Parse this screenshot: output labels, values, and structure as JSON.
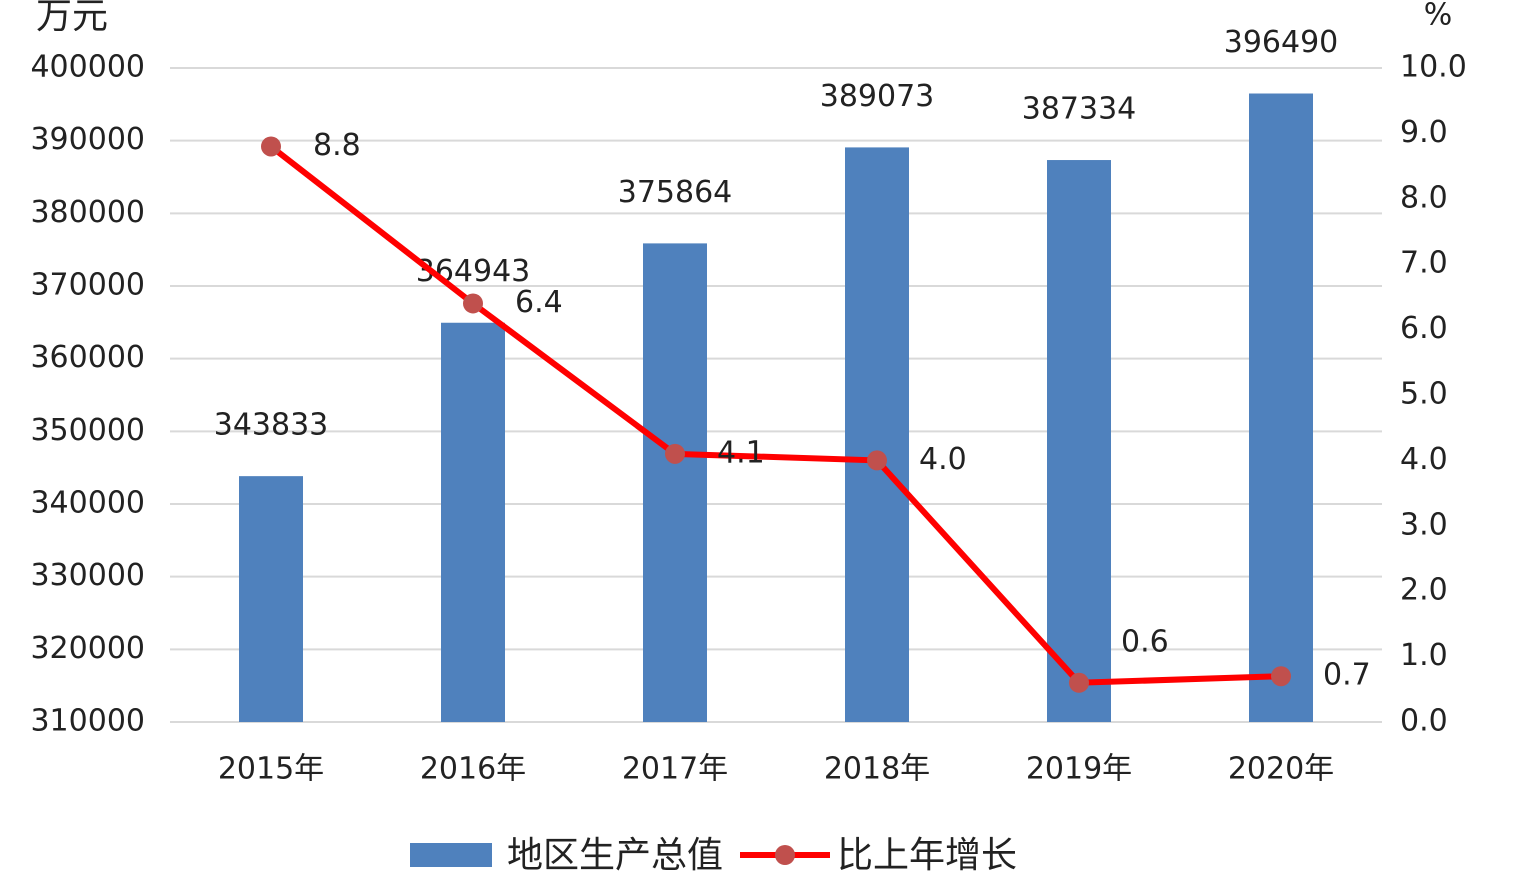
{
  "chart_data": {
    "type": "bar",
    "y_label": "万元",
    "y2_label": "%",
    "categories": [
      "2015年",
      "2016年",
      "2017年",
      "2018年",
      "2019年",
      "2020年"
    ],
    "series": [
      {
        "name": "地区生产总值",
        "type": "bar",
        "color": "#4f81bd",
        "values": [
          343833,
          364943,
          375864,
          389073,
          387334,
          396490
        ]
      },
      {
        "name": "比上年增长",
        "type": "line",
        "axis": "y2",
        "color": "#ff0000",
        "marker_color": "#c0504d",
        "values": [
          8.8,
          6.4,
          4.1,
          4.0,
          0.6,
          0.7
        ],
        "value_labels": [
          "8.8",
          "6.4",
          "4.1",
          "4.0",
          "0.6",
          "0.7"
        ]
      }
    ],
    "ylim": [
      310000,
      400000
    ],
    "yticks": [
      310000,
      320000,
      330000,
      340000,
      350000,
      360000,
      370000,
      380000,
      390000,
      400000
    ],
    "y2lim": [
      0,
      10
    ],
    "y2ticks": [
      {
        "value": 0,
        "label": "0.0"
      },
      {
        "value": 1,
        "label": "1.0"
      },
      {
        "value": 2,
        "label": "2.0"
      },
      {
        "value": 3,
        "label": "3.0"
      },
      {
        "value": 4,
        "label": "4.0"
      },
      {
        "value": 5,
        "label": "5.0"
      },
      {
        "value": 6,
        "label": "6.0"
      },
      {
        "value": 7,
        "label": "7.0"
      },
      {
        "value": 8,
        "label": "8.0"
      },
      {
        "value": 9,
        "label": "9.0"
      },
      {
        "value": 10,
        "label": "10.0"
      }
    ],
    "grid": true,
    "legend": "bottom"
  }
}
